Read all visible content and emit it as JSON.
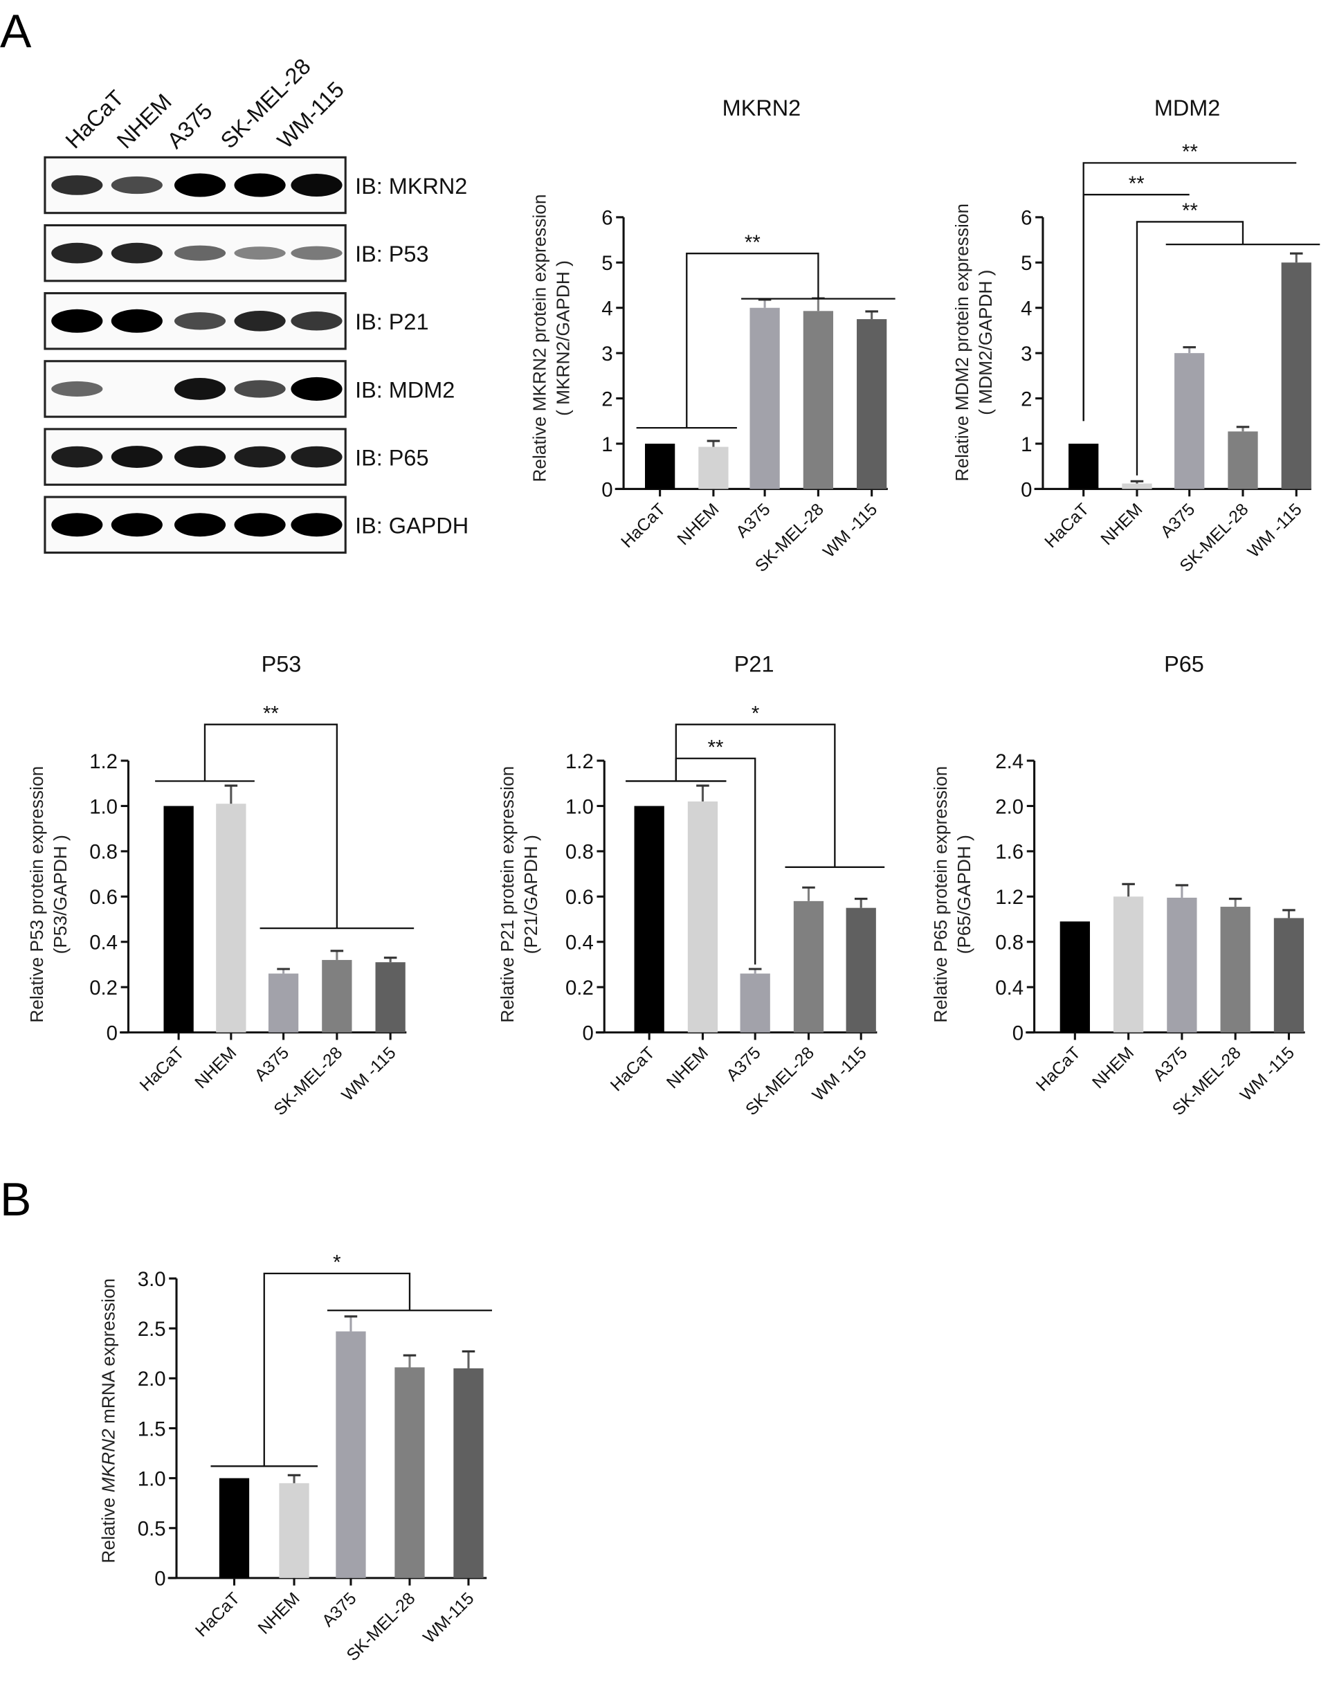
{
  "panel_labels": [
    "A",
    "B"
  ],
  "blot": {
    "lanes": [
      "HaCaT",
      "NHEM",
      "A375",
      "SK-MEL-28",
      "WM-115"
    ],
    "rows": [
      {
        "label": "IB: MKRN2",
        "intensity": [
          0.75,
          0.6,
          1.0,
          1.0,
          0.95
        ]
      },
      {
        "label": "IB: P53",
        "intensity": [
          0.8,
          0.8,
          0.45,
          0.3,
          0.35
        ]
      },
      {
        "label": "IB: P21",
        "intensity": [
          1.0,
          1.0,
          0.6,
          0.8,
          0.7
        ]
      },
      {
        "label": "IB: MDM2",
        "intensity": [
          0.45,
          0.0,
          0.9,
          0.6,
          1.0
        ]
      },
      {
        "label": "IB: P65",
        "intensity": [
          0.85,
          0.9,
          0.9,
          0.85,
          0.85
        ]
      },
      {
        "label": "IB: GAPDH",
        "intensity": [
          1.0,
          1.0,
          1.0,
          1.0,
          1.0
        ]
      }
    ]
  },
  "colors": [
    "#000000",
    "#d3d3d3",
    "#a2a2aa",
    "#808080",
    "#606060"
  ],
  "chart_data": [
    {
      "id": "mkrn2",
      "type": "bar",
      "title": "MKRN2",
      "ylabel": "Relative MKRN2 protein expression",
      "ylabel2": "( MKRN2/GAPDH )",
      "categories": [
        "HaCaT",
        "NHEM",
        "A375",
        "SK-MEL-28",
        "WM -115"
      ],
      "values": [
        1.0,
        0.93,
        4.0,
        3.93,
        3.75
      ],
      "errors": [
        0,
        0.13,
        0.18,
        0.28,
        0.17
      ],
      "ylim": [
        0,
        6
      ],
      "yticks": [
        "0",
        "1",
        "2",
        "3",
        "4",
        "5",
        "6"
      ],
      "significance": [
        {
          "label": "**",
          "left": [
            0,
            1
          ],
          "left_y": 1.35,
          "right": [
            2,
            3,
            4
          ],
          "right_y": 4.2,
          "top": 5.2
        }
      ]
    },
    {
      "id": "mdm2",
      "type": "bar",
      "title": "MDM2",
      "ylabel": "Relative MDM2 protein expression",
      "ylabel2": "( MDM2/GAPDH )",
      "categories": [
        "HaCaT",
        "NHEM",
        "A375",
        "SK-MEL-28",
        "WM -115"
      ],
      "values": [
        1.0,
        0.12,
        3.0,
        1.27,
        5.0
      ],
      "errors": [
        0,
        0.05,
        0.13,
        0.1,
        0.2
      ],
      "ylim": [
        0,
        6
      ],
      "yticks": [
        "0",
        "1",
        "2",
        "3",
        "4",
        "5",
        "6"
      ],
      "significance": [
        {
          "label": "**",
          "left": [
            0
          ],
          "left_y": 1.5,
          "right": [
            4
          ],
          "right_y": 7.2,
          "top": 7.2
        },
        {
          "label": "**",
          "left": [
            0
          ],
          "left_y": 1.5,
          "right": [
            2
          ],
          "right_y": 6.5,
          "top": 6.5
        },
        {
          "label": "**",
          "left": [
            1
          ],
          "left_y": 0.3,
          "right": [
            2,
            4
          ],
          "right_y": 5.4,
          "top": 5.9
        }
      ]
    },
    {
      "id": "p53",
      "type": "bar",
      "title": "P53",
      "ylabel": "Relative P53 protein expression",
      "ylabel2": "(P53/GAPDH )",
      "categories": [
        "HaCaT",
        "NHEM",
        "A375",
        "SK-MEL-28",
        "WM -115"
      ],
      "values": [
        1.0,
        1.01,
        0.26,
        0.32,
        0.31
      ],
      "errors": [
        0,
        0.08,
        0.02,
        0.04,
        0.02
      ],
      "ylim": [
        0,
        1.2
      ],
      "yticks": [
        "0",
        "0.2",
        "0.4",
        "0.6",
        "0.8",
        "1.0",
        "1.2"
      ],
      "significance": [
        {
          "label": "**",
          "left": [
            0,
            1
          ],
          "left_y": 1.11,
          "right": [
            2,
            3,
            4
          ],
          "right_y": 0.46,
          "top": 1.36
        }
      ]
    },
    {
      "id": "p21",
      "type": "bar",
      "title": "P21",
      "ylabel": "Relative P21 protein expression",
      "ylabel2": "(P21/GAPDH )",
      "categories": [
        "HaCaT",
        "NHEM",
        "A375",
        "SK-MEL-28",
        "WM -115"
      ],
      "values": [
        1.0,
        1.02,
        0.26,
        0.58,
        0.55
      ],
      "errors": [
        0,
        0.07,
        0.02,
        0.06,
        0.04
      ],
      "ylim": [
        0,
        1.2
      ],
      "yticks": [
        "0",
        "0.2",
        "0.4",
        "0.6",
        "0.8",
        "1.0",
        "1.2"
      ],
      "significance": [
        {
          "label": "**",
          "left": [
            0,
            1
          ],
          "left_y": 1.11,
          "right": [
            2
          ],
          "right_y": 0.3,
          "top": 1.21
        },
        {
          "label": "*",
          "left": [
            0,
            1
          ],
          "left_y": 1.11,
          "right": [
            3,
            4
          ],
          "right_y": 0.73,
          "top": 1.36
        }
      ]
    },
    {
      "id": "p65",
      "type": "bar",
      "title": "P65",
      "ylabel": "Relative P65 protein expression",
      "ylabel2": "(P65/GAPDH )",
      "categories": [
        "HaCaT",
        "NHEM",
        "A375",
        "SK-MEL-28",
        "WM -115"
      ],
      "values": [
        0.98,
        1.2,
        1.19,
        1.11,
        1.01
      ],
      "errors": [
        0,
        0.11,
        0.11,
        0.07,
        0.07
      ],
      "ylim": [
        0,
        2.4
      ],
      "yticks": [
        "0",
        "0.4",
        "0.8",
        "1.2",
        "1.6",
        "2.0",
        "2.4"
      ],
      "significance": []
    },
    {
      "id": "mrna",
      "type": "bar",
      "title": "",
      "ylabel": "Relative ",
      "ylabel_italic": "MKRN2",
      "ylabel_end": " mRNA expression",
      "ylabel2": "",
      "categories": [
        "HaCaT",
        "NHEM",
        "A375",
        "SK-MEL-28",
        "WM-115"
      ],
      "values": [
        1.0,
        0.95,
        2.47,
        2.11,
        2.1
      ],
      "errors": [
        0,
        0.08,
        0.15,
        0.12,
        0.17
      ],
      "ylim": [
        0,
        3.0
      ],
      "yticks": [
        "0",
        "0.5",
        "1.0",
        "1.5",
        "2.0",
        "2.5",
        "3.0"
      ],
      "significance": [
        {
          "label": "*",
          "left": [
            0,
            1
          ],
          "left_y": 1.12,
          "right": [
            2,
            3,
            4
          ],
          "right_y": 2.68,
          "top": 3.05
        }
      ]
    }
  ]
}
